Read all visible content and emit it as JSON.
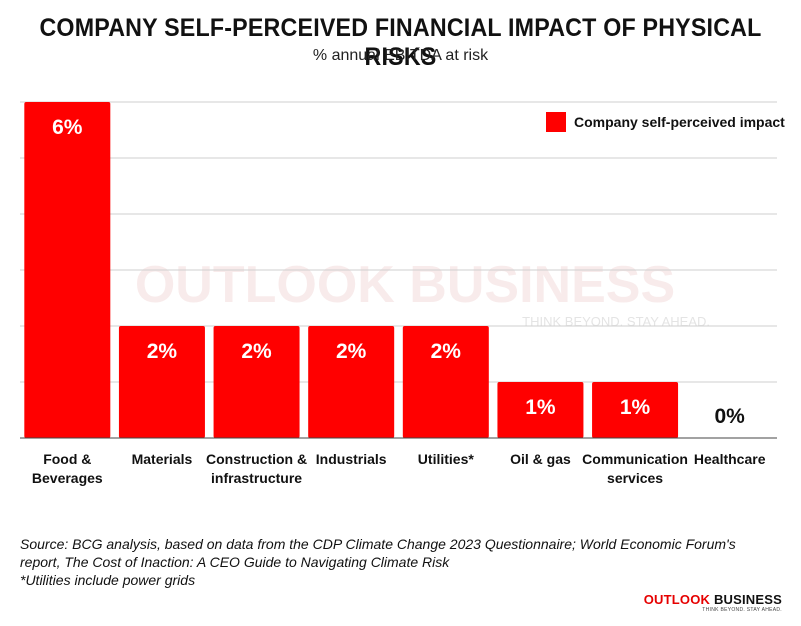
{
  "title": "COMPANY SELF-PERCEIVED FINANCIAL IMPACT OF PHYSICAL RISKS",
  "subtitle": "% annual EBITDA at risk",
  "chart_data": {
    "type": "bar",
    "categories": [
      "Food & Beverages",
      "Materials",
      "Construction & infrastructure",
      "Industrials",
      "Utilities*",
      "Oil & gas",
      "Communication services",
      "Healthcare"
    ],
    "category_lines": [
      [
        "Food &",
        "Beverages"
      ],
      [
        "Materials"
      ],
      [
        "Construction &",
        "infrastructure"
      ],
      [
        "Industrials"
      ],
      [
        "Utilities*"
      ],
      [
        "Oil & gas"
      ],
      [
        "Communication",
        "services"
      ],
      [
        "Healthcare"
      ]
    ],
    "series": [
      {
        "name": "Company self-perceived impact",
        "values": [
          6,
          2,
          2,
          2,
          2,
          1,
          1,
          0
        ],
        "data_labels": [
          "6%",
          "2%",
          "2%",
          "2%",
          "2%",
          "1%",
          "1%",
          "0%"
        ],
        "color": "#ff0000"
      }
    ],
    "ylim": [
      0,
      6
    ],
    "grid": true,
    "legend_position": "top-right",
    "xlabel": "",
    "ylabel": ""
  },
  "legend": {
    "label": "Company self-perceived impact"
  },
  "footnotes": {
    "source": "Source: BCG analysis, based on data from the CDP Climate Change 2023 Questionnaire; World Economic Forum's report, The Cost of Inaction: A CEO Guide to Navigating Climate Risk",
    "note": "*Utilities include power grids"
  },
  "brand": {
    "name_part1": "OUTLOOK",
    "name_part2": "BUSINESS",
    "tagline": "THINK BEYOND. STAY AHEAD.",
    "watermark": "OUTLOOK BUSINESS",
    "watermark_tagline": "THINK BEYOND. STAY AHEAD."
  },
  "colors": {
    "bar": "#ff0000",
    "grid": "#cfcfcf",
    "axis": "#444444",
    "label_inside": "#ffffff",
    "label_outside": "#111111",
    "brand_red": "#e60000"
  }
}
